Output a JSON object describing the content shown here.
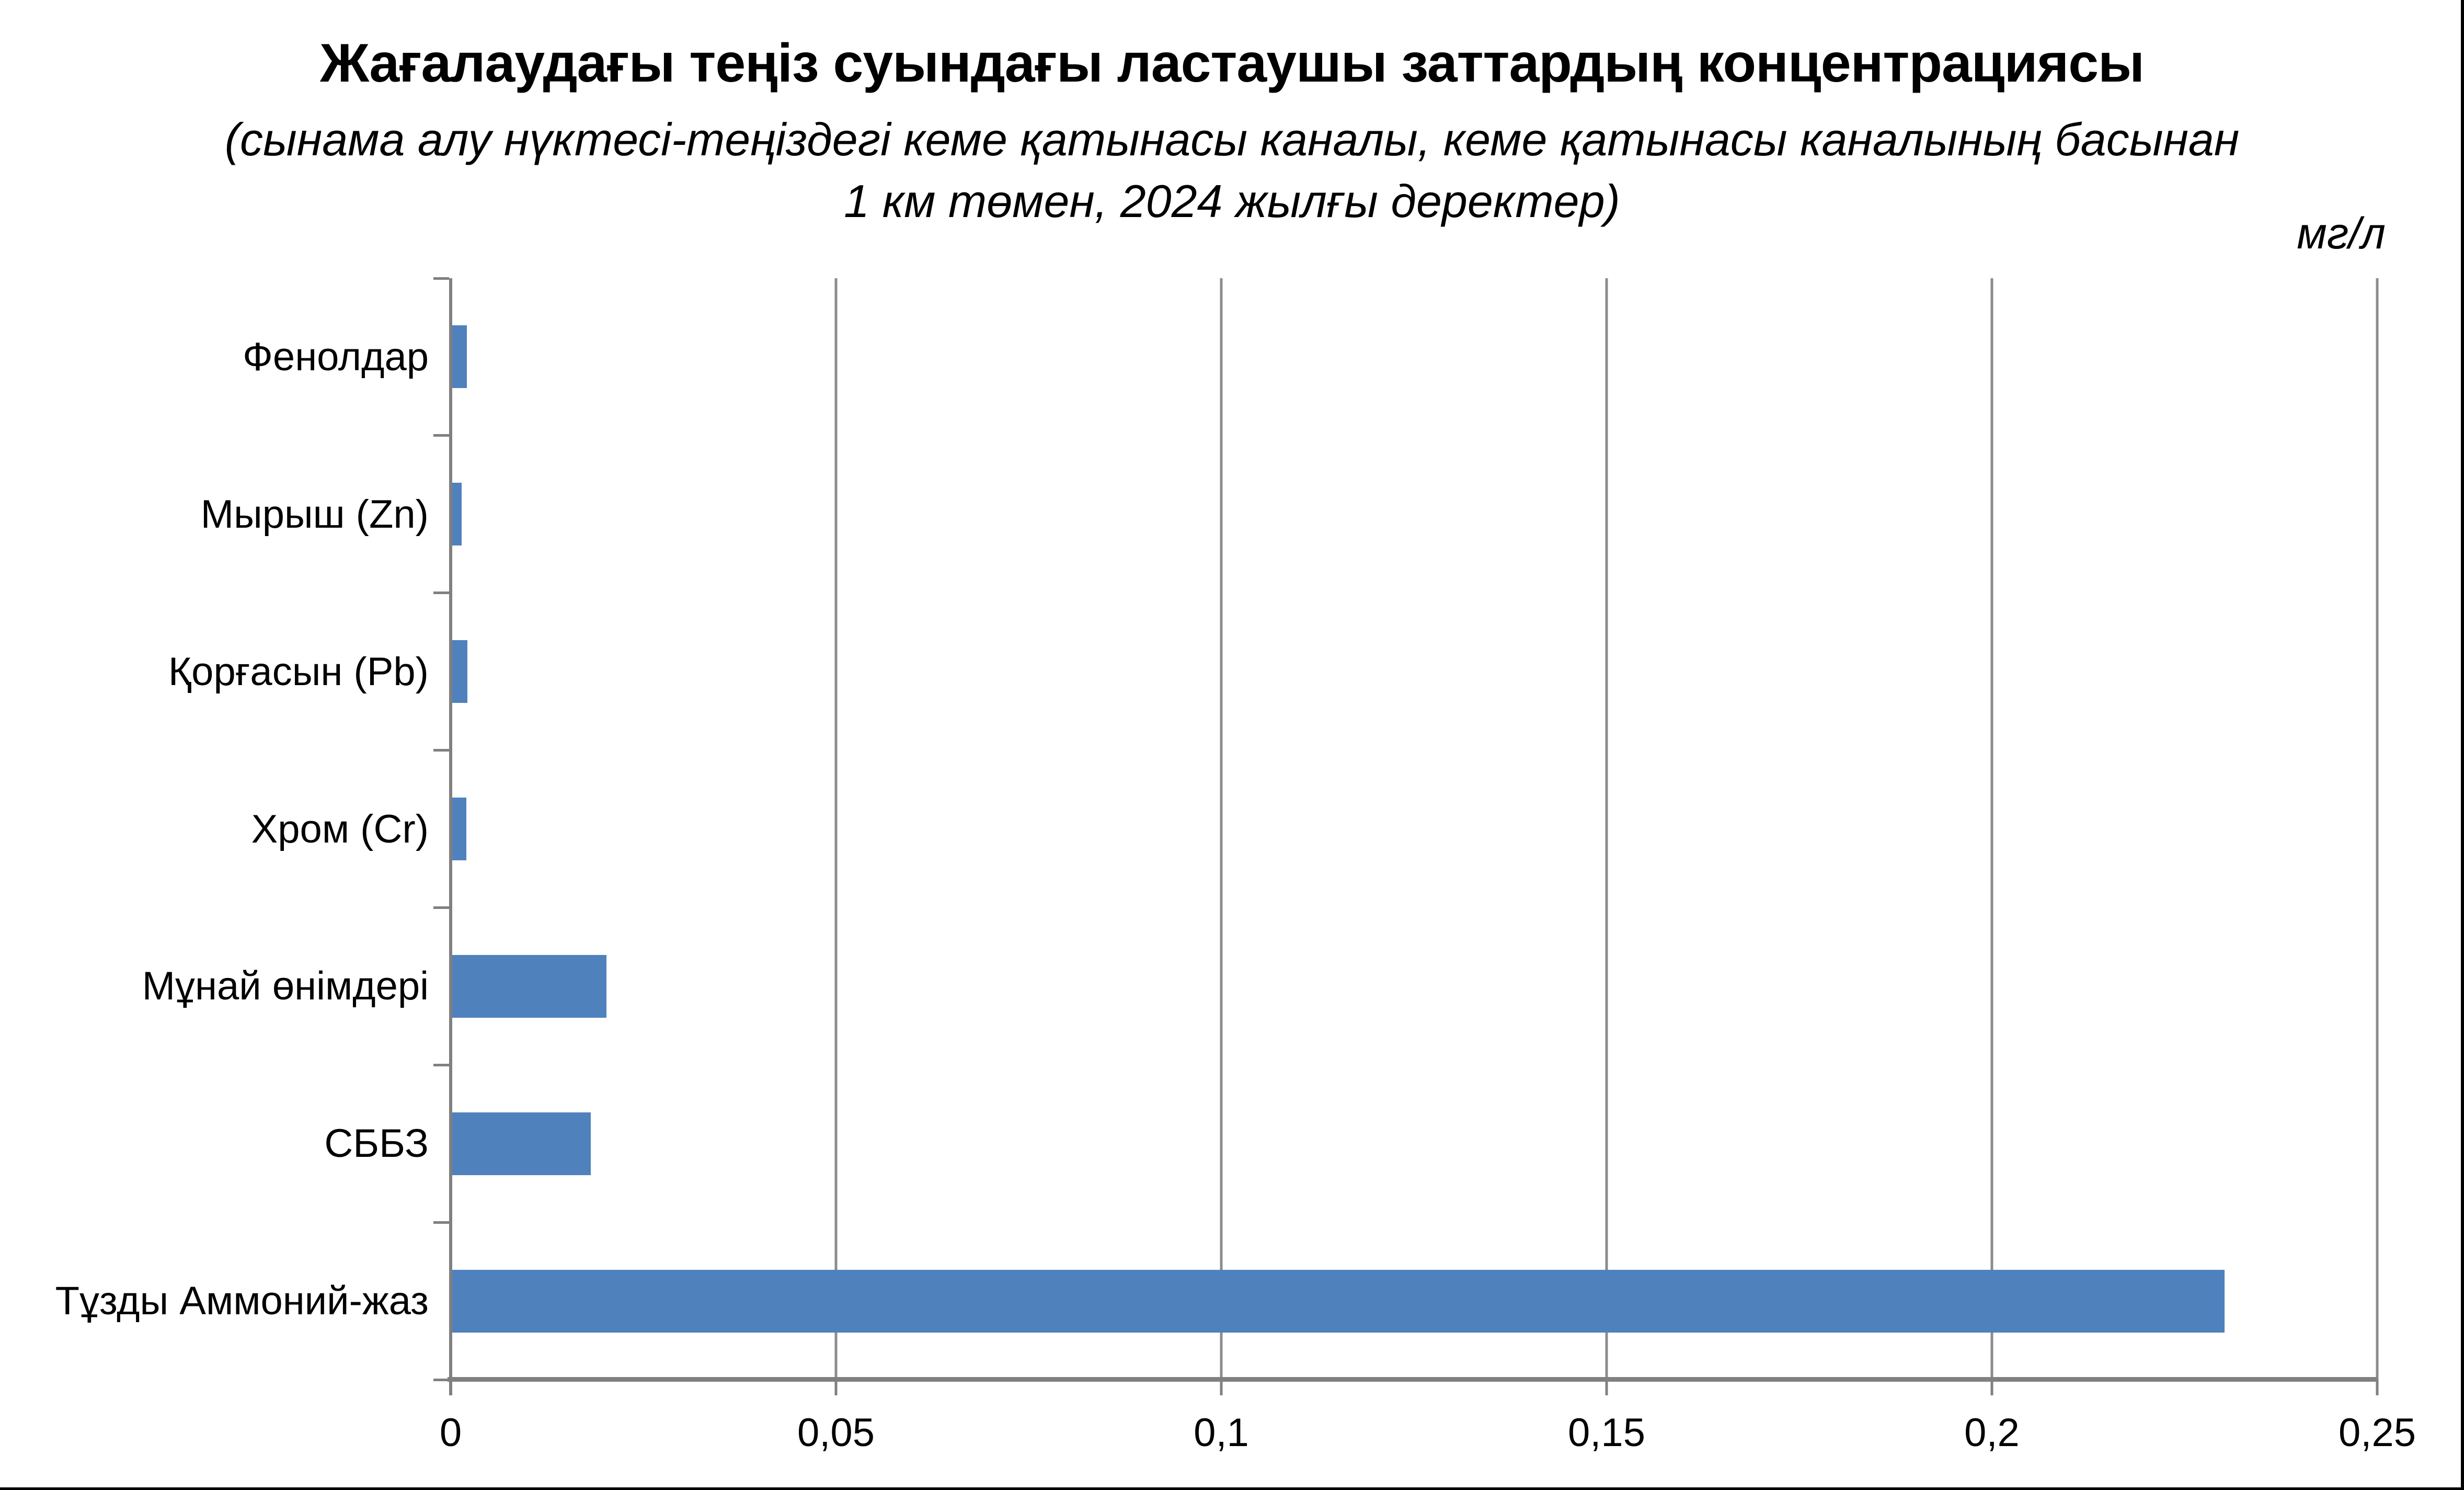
{
  "header": {
    "title": "Жағалаудағы теңіз суындағы ластаушы заттардың концентрациясы",
    "subtitle_line1": "(сынама алу нүктесі-теңіздегі кеме қатынасы каналы, кеме қатынасы каналының басынан",
    "subtitle_line2": "1 км төмен, 2024 жылғы деректер)",
    "unit_label": "мг/л"
  },
  "chart_data": {
    "type": "bar",
    "orientation": "horizontal",
    "title": "Жағалаудағы теңіз суындағы ластаушы заттардың концентрациясы",
    "subtitle": "(сынама алу нүктесі-теңіздегі кеме қатынасы каналы, кеме қатынасы каналының басынан 1 км төмен, 2024 жылғы деректер)",
    "unit": "мг/л",
    "categories": [
      "Фенолдар",
      "Мырыш (Zn)",
      "Қорғасын (Pb)",
      "Хром (Cr)",
      "Мұнай өнімдері",
      "СББЗ",
      "Тұзды Аммоний-жаз"
    ],
    "values": [
      0.0019,
      0.0012,
      0.002,
      0.0018,
      0.02,
      0.018,
      0.23
    ],
    "xlim": [
      0,
      0.25
    ],
    "x_ticks": [
      0,
      0.05,
      0.1,
      0.15,
      0.2,
      0.25
    ],
    "x_tick_labels": [
      "0",
      "0,05",
      "0,1",
      "0,15",
      "0,2",
      "0,25"
    ],
    "grid": true,
    "legend": false,
    "colors": {
      "bar": "#4f81bd",
      "axis": "#808080",
      "gridline": "#8c8c8c",
      "text": "#000000"
    }
  }
}
